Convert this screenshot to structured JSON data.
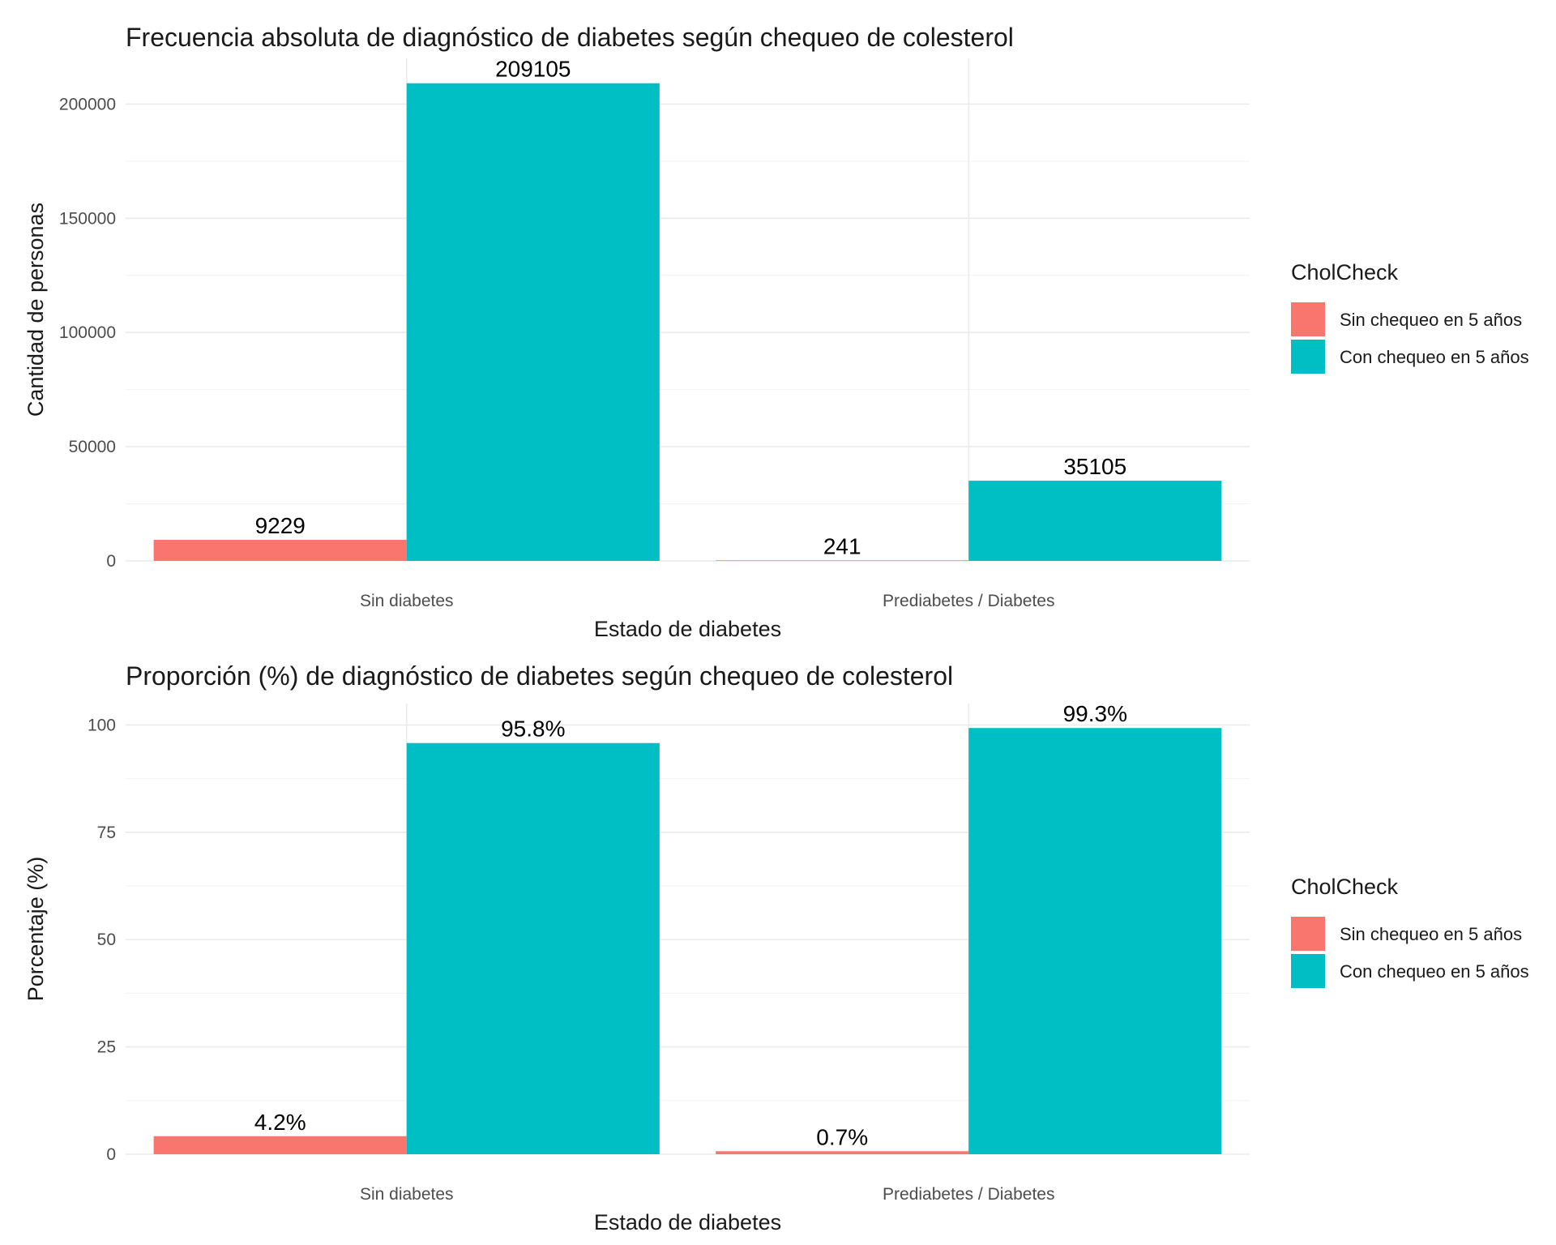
{
  "chart_data": [
    {
      "type": "bar",
      "title": "Frecuencia absoluta de diagnóstico de diabetes según chequeo de colesterol",
      "xlabel": "Estado de diabetes",
      "ylabel": "Cantidad de personas",
      "categories": [
        "Sin diabetes",
        "Prediabetes / Diabetes"
      ],
      "series": [
        {
          "name": "Sin chequeo en 5 años",
          "color": "#F8766D",
          "values": [
            9229,
            241
          ],
          "labels": [
            "9229",
            "241"
          ]
        },
        {
          "name": "Con chequeo en 5 años",
          "color": "#00BFC4",
          "values": [
            209105,
            35105
          ],
          "labels": [
            "209105",
            "35105"
          ]
        }
      ],
      "ylim": [
        0,
        220000
      ],
      "yticks": [
        0,
        50000,
        100000,
        150000,
        200000
      ],
      "ytick_labels": [
        "0",
        "50000",
        "100000",
        "150000",
        "200000"
      ],
      "legend_title": "CholCheck",
      "legend_position": "right",
      "grid": true
    },
    {
      "type": "bar",
      "title": "Proporción (%) de diagnóstico de diabetes según chequeo de colesterol",
      "xlabel": "Estado de diabetes",
      "ylabel": "Porcentaje (%)",
      "categories": [
        "Sin diabetes",
        "Prediabetes / Diabetes"
      ],
      "series": [
        {
          "name": "Sin chequeo en 5 años",
          "color": "#F8766D",
          "values": [
            4.2,
            0.7
          ],
          "labels": [
            "4.2%",
            "0.7%"
          ]
        },
        {
          "name": "Con chequeo en 5 años",
          "color": "#00BFC4",
          "values": [
            95.8,
            99.3
          ],
          "labels": [
            "95.8%",
            "99.3%"
          ]
        }
      ],
      "ylim": [
        0,
        105
      ],
      "yticks": [
        0,
        25,
        50,
        75,
        100
      ],
      "ytick_labels": [
        "0",
        "25",
        "50",
        "75",
        "100"
      ],
      "legend_title": "CholCheck",
      "legend_position": "right",
      "grid": true
    }
  ]
}
